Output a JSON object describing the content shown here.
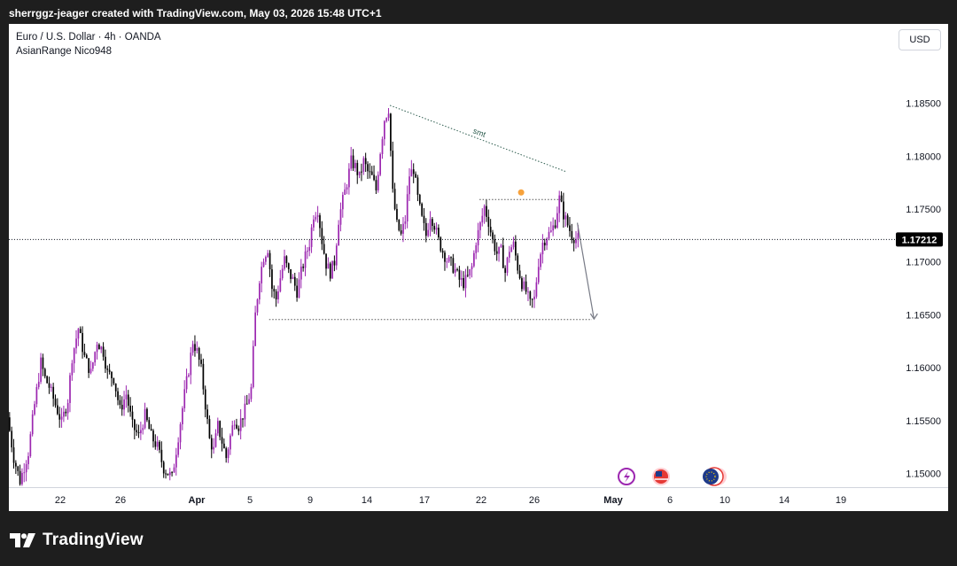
{
  "header": {
    "caption": "sherrggz-jeager created with TradingView.com, May 03, 2026 15:48 UTC+1"
  },
  "legend": {
    "symbol": "Euro / U.S. Dollar · 4h · OANDA",
    "indicator": "AsianRange Nico948"
  },
  "currency_button": "USD",
  "footer": {
    "brand": "TradingView"
  },
  "colors": {
    "bull": "#9c27b0",
    "bear": "#000000",
    "grid": "#d1d4dc",
    "text": "#131722",
    "price_badge": "#000000"
  },
  "chart_data": {
    "type": "candlestick",
    "symbol": "EURUSD",
    "timeframe": "4h",
    "y_axis": {
      "ticks": [
        1.15,
        1.155,
        1.16,
        1.165,
        1.17,
        1.175,
        1.18,
        1.185
      ],
      "tick_labels": [
        "1.15000",
        "1.15500",
        "1.16000",
        "1.16500",
        "1.17000",
        "1.17500",
        "1.18000",
        "1.18500"
      ],
      "range": [
        1.1487,
        1.1925
      ]
    },
    "x_axis": {
      "labels": [
        "22",
        "26",
        "Apr",
        "5",
        "9",
        "14",
        "17",
        "22",
        "26",
        "May",
        "6",
        "10",
        "14",
        "19"
      ]
    },
    "current_price": 1.17212,
    "current_price_label": "1.17212",
    "price_path": [
      [
        0,
        1.1553
      ],
      [
        3,
        1.1515
      ],
      [
        6,
        1.1493
      ],
      [
        10,
        1.152
      ],
      [
        13,
        1.1565
      ],
      [
        16,
        1.1605
      ],
      [
        18,
        1.159
      ],
      [
        20,
        1.1582
      ],
      [
        23,
        1.1565
      ],
      [
        26,
        1.1548
      ],
      [
        29,
        1.157
      ],
      [
        31,
        1.161
      ],
      [
        34,
        1.1637
      ],
      [
        37,
        1.161
      ],
      [
        40,
        1.1595
      ],
      [
        43,
        1.1625
      ],
      [
        46,
        1.1615
      ],
      [
        48,
        1.1595
      ],
      [
        51,
        1.159
      ],
      [
        54,
        1.156
      ],
      [
        57,
        1.1575
      ],
      [
        60,
        1.1545
      ],
      [
        63,
        1.1535
      ],
      [
        66,
        1.1555
      ],
      [
        69,
        1.1535
      ],
      [
        72,
        1.1525
      ],
      [
        75,
        1.1505
      ],
      [
        79,
        1.1496
      ],
      [
        82,
        1.1535
      ],
      [
        85,
        1.1575
      ],
      [
        87,
        1.1598
      ],
      [
        89,
        1.1625
      ],
      [
        91,
        1.1615
      ],
      [
        93,
        1.1598
      ],
      [
        95,
        1.1565
      ],
      [
        97,
        1.1532
      ],
      [
        99,
        1.1522
      ],
      [
        101,
        1.1545
      ],
      [
        103,
        1.153
      ],
      [
        105,
        1.1515
      ],
      [
        107,
        1.1535
      ],
      [
        109,
        1.1552
      ],
      [
        111,
        1.1545
      ],
      [
        113,
        1.1555
      ],
      [
        115,
        1.1565
      ],
      [
        117,
        1.158
      ],
      [
        119,
        1.165
      ],
      [
        121,
        1.1685
      ],
      [
        123,
        1.1705
      ],
      [
        125,
        1.1713
      ],
      [
        127,
        1.1675
      ],
      [
        129,
        1.1665
      ],
      [
        131,
        1.1685
      ],
      [
        133,
        1.1702
      ],
      [
        135,
        1.169
      ],
      [
        137,
        1.1683
      ],
      [
        139,
        1.1672
      ],
      [
        141,
        1.169
      ],
      [
        143,
        1.1705
      ],
      [
        145,
        1.1718
      ],
      [
        147,
        1.1745
      ],
      [
        149,
        1.175
      ],
      [
        151,
        1.172
      ],
      [
        153,
        1.1698
      ],
      [
        155,
        1.169
      ],
      [
        157,
        1.17
      ],
      [
        159,
        1.174
      ],
      [
        161,
        1.1758
      ],
      [
        163,
        1.1775
      ],
      [
        165,
        1.1795
      ],
      [
        167,
        1.179
      ],
      [
        169,
        1.178
      ],
      [
        171,
        1.1795
      ],
      [
        173,
        1.1785
      ],
      [
        175,
        1.178
      ],
      [
        177,
        1.1768
      ],
      [
        179,
        1.1805
      ],
      [
        181,
        1.1835
      ],
      [
        183,
        1.1845
      ],
      [
        185,
        1.1765
      ],
      [
        187,
        1.1735
      ],
      [
        189,
        1.1725
      ],
      [
        191,
        1.174
      ],
      [
        193,
        1.1782
      ],
      [
        195,
        1.1788
      ],
      [
        197,
        1.176
      ],
      [
        199,
        1.174
      ],
      [
        201,
        1.1725
      ],
      [
        203,
        1.1745
      ],
      [
        205,
        1.1735
      ],
      [
        207,
        1.172
      ],
      [
        209,
        1.171
      ],
      [
        211,
        1.1702
      ],
      [
        213,
        1.1698
      ],
      [
        215,
        1.1692
      ],
      [
        217,
        1.1683
      ],
      [
        219,
        1.168
      ],
      [
        221,
        1.1685
      ],
      [
        223,
        1.1695
      ],
      [
        225,
        1.172
      ],
      [
        227,
        1.1735
      ],
      [
        229,
        1.1752
      ],
      [
        231,
        1.1738
      ],
      [
        233,
        1.172
      ],
      [
        235,
        1.1708
      ],
      [
        237,
        1.171
      ],
      [
        239,
        1.169
      ],
      [
        241,
        1.1712
      ],
      [
        243,
        1.1716
      ],
      [
        245,
        1.1695
      ],
      [
        247,
        1.168
      ],
      [
        249,
        1.1672
      ],
      [
        251,
        1.166
      ],
      [
        253,
        1.1665
      ],
      [
        255,
        1.17
      ],
      [
        257,
        1.1718
      ],
      [
        259,
        1.1725
      ],
      [
        261,
        1.1728
      ],
      [
        263,
        1.1738
      ],
      [
        265,
        1.176
      ],
      [
        267,
        1.1745
      ],
      [
        269,
        1.1735
      ],
      [
        271,
        1.1725
      ],
      [
        273,
        1.1722
      ]
    ],
    "annotations": {
      "smt_line": {
        "label": "smt",
        "from": [
          183,
          1.1848
        ],
        "to": [
          268,
          1.1785
        ]
      },
      "upper_level": {
        "price": 1.1759,
        "from_bar": 226,
        "to_bar": 266
      },
      "lower_level": {
        "price": 1.16455,
        "from_bar": 125,
        "to_bar": 280
      },
      "projection_arrow": {
        "from": [
          273,
          1.1737
        ],
        "to": [
          281,
          1.1646
        ]
      }
    }
  }
}
